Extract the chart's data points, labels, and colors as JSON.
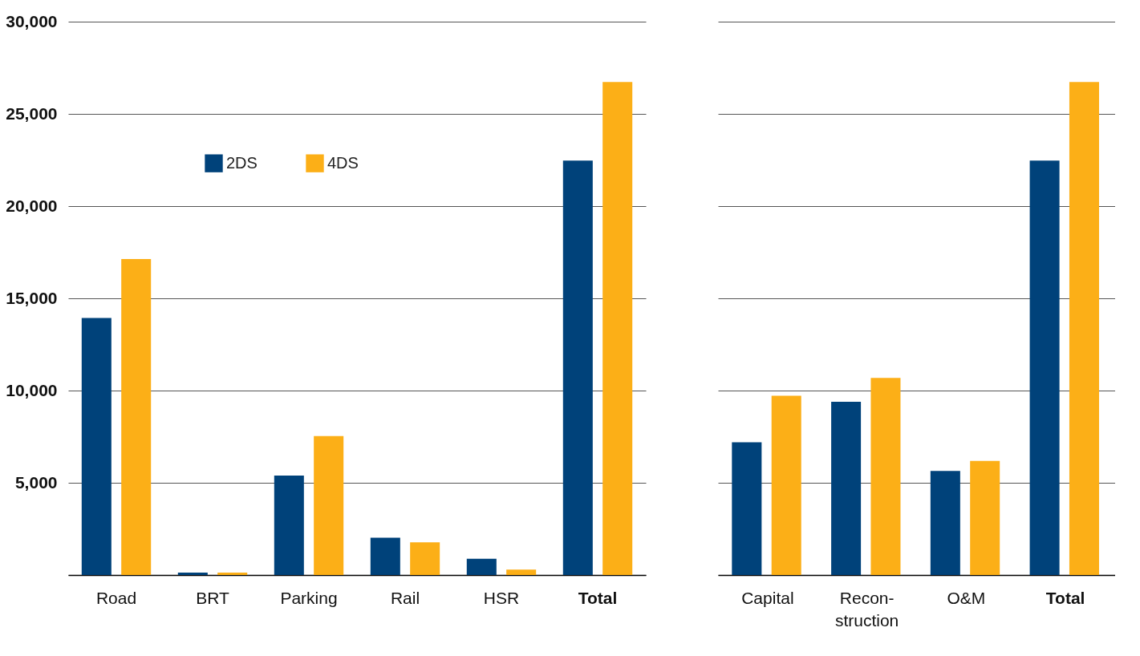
{
  "chart_data": [
    {
      "type": "bar",
      "categories": [
        "Road",
        "BRT",
        "Parking",
        "Rail",
        "HSR",
        "Total"
      ],
      "series": [
        {
          "name": "2DS",
          "color": "#00427a",
          "values": [
            13930,
            130,
            5390,
            2020,
            880,
            22470
          ]
        },
        {
          "name": "4DS",
          "color": "#fcaf17",
          "values": [
            17130,
            130,
            7530,
            1770,
            290,
            26730
          ]
        }
      ],
      "ylim": [
        0,
        30000
      ],
      "yticks": [
        {
          "value": 0,
          "label": null
        },
        {
          "value": 5000,
          "label": "5,000"
        },
        {
          "value": 10000,
          "label": "10,000"
        },
        {
          "value": 15000,
          "label": "15,000"
        },
        {
          "value": 20000,
          "label": "20,000"
        },
        {
          "value": 25000,
          "label": "25,000"
        },
        {
          "value": 30000,
          "label": "30,000"
        }
      ],
      "grid": "y",
      "legend": "top left"
    },
    {
      "type": "bar",
      "categories": [
        "Capital",
        "Recon-\nstruction",
        "O&M",
        "Total"
      ],
      "series": [
        {
          "color": "#00427a",
          "values": [
            7200,
            9390,
            5640,
            22470
          ]
        },
        {
          "color": "#fcaf17",
          "values": [
            9720,
            10690,
            6190,
            26730
          ]
        }
      ],
      "ylim": [
        0,
        30000
      ],
      "yticks": [
        {
          "value": 0,
          "label": null
        },
        {
          "value": 5000,
          "label": null
        },
        {
          "value": 10000,
          "label": null
        },
        {
          "value": 15000,
          "label": null
        },
        {
          "value": 20000,
          "label": null
        },
        {
          "value": 25000,
          "label": null
        },
        {
          "value": 30000,
          "label": null
        }
      ],
      "grid": "y",
      "tick_labels": "x"
    }
  ]
}
